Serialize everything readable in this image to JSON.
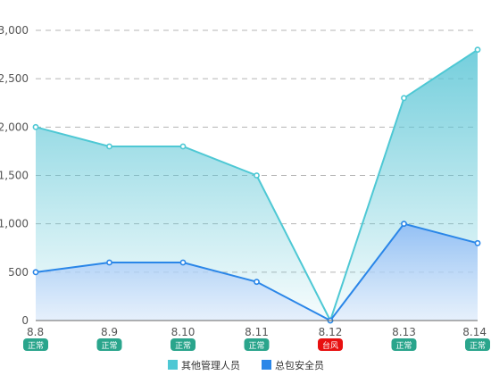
{
  "chart_data": {
    "type": "area",
    "categories": [
      "8.8",
      "8.9",
      "8.10",
      "8.11",
      "8.12",
      "8.13",
      "8.14"
    ],
    "status_labels": [
      "正常",
      "正常",
      "正常",
      "正常",
      "台风",
      "正常",
      "正常"
    ],
    "status_colors": {
      "正常": "#2aa58c",
      "台风": "#e81010"
    },
    "series": [
      {
        "name": "其他管理人员",
        "values": [
          2000,
          1800,
          1800,
          1500,
          0,
          2300,
          2800
        ],
        "color": "#4ec8d4"
      },
      {
        "name": "总包安全员",
        "values": [
          500,
          600,
          600,
          400,
          0,
          1000,
          800
        ],
        "color": "#2a86e8"
      }
    ],
    "y_ticks": [
      "0",
      "500",
      "1,000",
      "1,500",
      "2,000",
      "2,500",
      "3,000"
    ],
    "ylim": [
      0,
      3000
    ],
    "grid": true,
    "legend_position": "bottom-center"
  }
}
